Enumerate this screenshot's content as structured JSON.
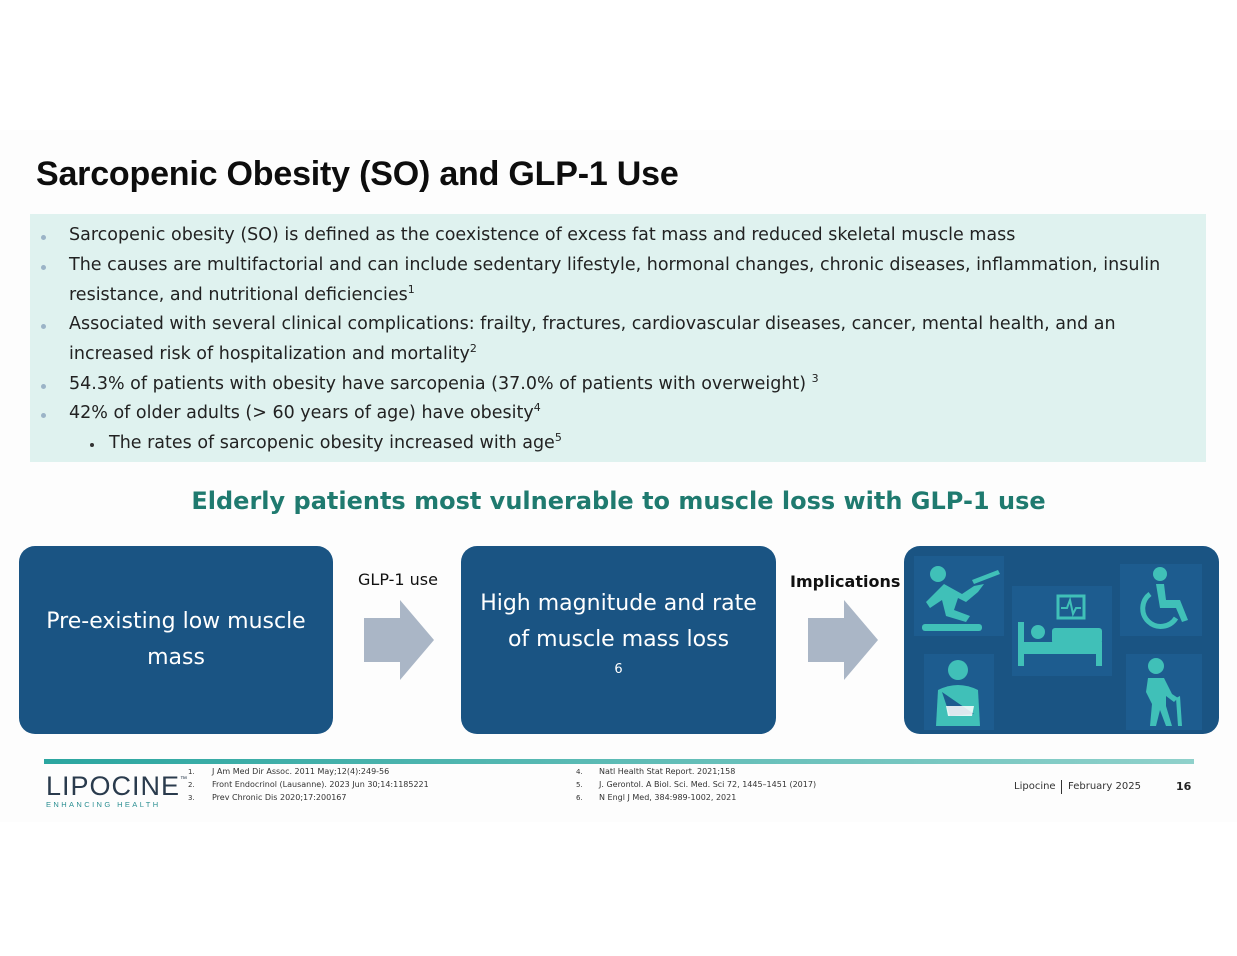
{
  "title": "Sarcopenic Obesity (SO) and GLP-1 Use",
  "bullets": {
    "b1": "Sarcopenic obesity (SO) is defined as the coexistence of excess fat mass and reduced skeletal muscle mass",
    "b2_line1": "The causes are multifactorial and can include sedentary lifestyle, hormonal changes, chronic diseases, inflammation, insulin",
    "b2_line2": "resistance, and nutritional deficiencies",
    "b2_sup": "1",
    "b3_line1": "Associated with several clinical complications: frailty, fractures, cardiovascular diseases, cancer, mental health, and an",
    "b3_line2": "increased risk of hospitalization and mortality",
    "b3_sup": "2",
    "b4": "54.3% of patients with obesity have sarcopenia (37.0% of patients with overweight)",
    "b4_sup": "3",
    "b5": "42% of older adults (> 60 years of age) have obesity",
    "b5_sup": "4",
    "b6": "The rates of sarcopenic obesity increased with age",
    "b6_sup": "5"
  },
  "subheading": "Elderly patients most vulnerable to muscle loss with GLP-1 use",
  "flow": {
    "box1_line1": "Pre-existing low muscle",
    "box1_line2": "mass",
    "arrow1_label": "GLP-1 use",
    "box2_line1": "High magnitude and rate",
    "box2_line2": "of muscle mass loss",
    "box2_sup": "6",
    "arrow2_label": "Implications",
    "icons": [
      "falling-person-icon",
      "wheelchair-icon",
      "hospital-bed-icon",
      "arm-sling-icon",
      "elderly-cane-icon"
    ]
  },
  "footer": {
    "logo_main": "LIPOCINE",
    "logo_tm": "™",
    "logo_sub": "ENHANCING HEALTH",
    "refs_left": [
      {
        "num": "1.",
        "text": "J Am Med Dir Assoc. 2011 May;12(4):249-56"
      },
      {
        "num": "2.",
        "text": "Front Endocrinol (Lausanne). 2023 Jun 30;14:1185221"
      },
      {
        "num": "3.",
        "text": "Prev Chronic Dis 2020;17:200167"
      }
    ],
    "refs_right": [
      {
        "num": "4.",
        "text": "Natl Health Stat Report. 2021;158"
      },
      {
        "num": "5.",
        "text": "J. Gerontol. A Biol. Sci. Med. Sci 72, 1445–1451 (2017)"
      },
      {
        "num": "6.",
        "text": "N Engl J Med, 384:989-1002, 2021"
      }
    ],
    "company": "Lipocine",
    "date": "February 2025",
    "page": "16"
  },
  "colors": {
    "box": "#1a5483",
    "teal_heading": "#1f7a6f",
    "bullet_bg": "#dff2ef",
    "icon": "#40c0b8",
    "arrow": "#aab6c6"
  }
}
